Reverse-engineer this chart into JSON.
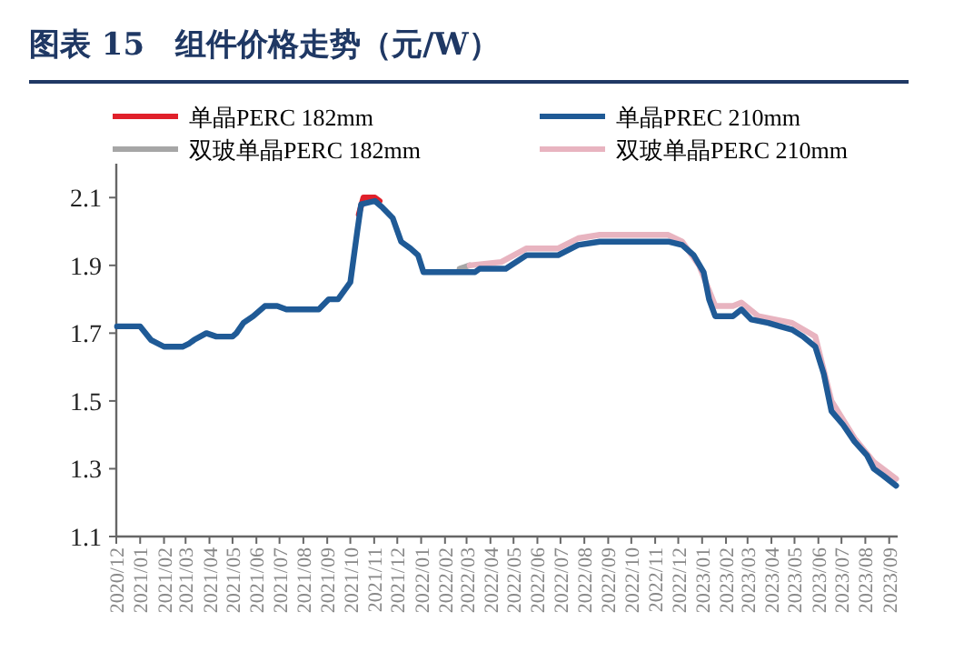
{
  "chart_data": {
    "type": "line",
    "title": "图表 15　组件价格走势（元/W）",
    "xlim": [
      "2020-12-01",
      "2023-09-12"
    ],
    "xticks": [
      {
        "value": "2020-12",
        "label": "2020/12"
      },
      {
        "value": "2021-01",
        "label": "2021/01"
      },
      {
        "value": "2021-02",
        "label": "2021/02"
      },
      {
        "value": "2021-03",
        "label": "2021/03"
      },
      {
        "value": "2021-04",
        "label": "2021/04"
      },
      {
        "value": "2021-05",
        "label": "2021/05"
      },
      {
        "value": "2021-06",
        "label": "2021/06"
      },
      {
        "value": "2021-07",
        "label": "2021/07"
      },
      {
        "value": "2021-08",
        "label": "2021/08"
      },
      {
        "value": "2021-09",
        "label": "2021/09"
      },
      {
        "value": "2021-10",
        "label": "2021/10"
      },
      {
        "value": "2021-11",
        "label": "2021/11"
      },
      {
        "value": "2021-12",
        "label": "2021/12"
      },
      {
        "value": "2022-01",
        "label": "2022/01"
      },
      {
        "value": "2022-02",
        "label": "2022/02"
      },
      {
        "value": "2022-03",
        "label": "2022/03"
      },
      {
        "value": "2022-04",
        "label": "2022/04"
      },
      {
        "value": "2022-05",
        "label": "2022/05"
      },
      {
        "value": "2022-06",
        "label": "2022/06"
      },
      {
        "value": "2022-07",
        "label": "2022/07"
      },
      {
        "value": "2022-08",
        "label": "2022/08"
      },
      {
        "value": "2022-09",
        "label": "2022/09"
      },
      {
        "value": "2022-10",
        "label": "2022/10"
      },
      {
        "value": "2022-11",
        "label": "2022/11"
      },
      {
        "value": "2022-12",
        "label": "2022/12"
      },
      {
        "value": "2023-01",
        "label": "2023/01"
      },
      {
        "value": "2023-02",
        "label": "2023/02"
      },
      {
        "value": "2023-03",
        "label": "2023/03"
      },
      {
        "value": "2023-04",
        "label": "2023/04"
      },
      {
        "value": "2023-05",
        "label": "2023/05"
      },
      {
        "value": "2023-06",
        "label": "2023/06"
      },
      {
        "value": "2023-07",
        "label": "2023/07"
      },
      {
        "value": "2023-08",
        "label": "2023/08"
      },
      {
        "value": "2023-09",
        "label": "2023/09"
      }
    ],
    "ylim": [
      1.1,
      2.2
    ],
    "yticks": [
      1.1,
      1.3,
      1.5,
      1.7,
      1.9,
      2.1
    ],
    "legend": "top",
    "grid": false,
    "marker": "none",
    "line_style": "solid",
    "series": [
      {
        "name": "单晶PERC 182mm",
        "color": "#e0202a",
        "x": [
          "2021-10-12",
          "2021-10-18",
          "2021-11-02",
          "2021-11-08"
        ],
        "values": [
          2.05,
          2.1,
          2.1,
          2.09
        ]
      },
      {
        "name": "单晶PREC 210mm",
        "color": "#1f5a96",
        "x": [
          "2020-12-02",
          "2021-01-01",
          "2021-01-15",
          "2021-02-01",
          "2021-02-25",
          "2021-03-06",
          "2021-03-12",
          "2021-03-28",
          "2021-04-10",
          "2021-05-01",
          "2021-05-06",
          "2021-05-15",
          "2021-05-28",
          "2021-06-12",
          "2021-06-28",
          "2021-07-10",
          "2021-08-21",
          "2021-09-03",
          "2021-09-15",
          "2021-10-01",
          "2021-10-10",
          "2021-10-15",
          "2021-11-02",
          "2021-11-12",
          "2021-11-25",
          "2021-12-06",
          "2021-12-18",
          "2021-12-28",
          "2022-01-04",
          "2022-03-12",
          "2022-03-18",
          "2022-04-21",
          "2022-05-18",
          "2022-06-28",
          "2022-07-24",
          "2022-08-21",
          "2022-11-18",
          "2022-12-06",
          "2022-12-21",
          "2023-01-03",
          "2023-01-10",
          "2023-01-18",
          "2023-02-10",
          "2023-02-21",
          "2023-03-06",
          "2023-03-28",
          "2023-04-12",
          "2023-04-28",
          "2023-05-12",
          "2023-05-28",
          "2023-06-08",
          "2023-06-18",
          "2023-07-03",
          "2023-07-18",
          "2023-08-03",
          "2023-08-12",
          "2023-08-24",
          "2023-09-10"
        ],
        "values": [
          1.72,
          1.72,
          1.68,
          1.66,
          1.66,
          1.67,
          1.68,
          1.7,
          1.69,
          1.69,
          1.7,
          1.73,
          1.75,
          1.78,
          1.78,
          1.77,
          1.77,
          1.8,
          1.8,
          1.85,
          2.0,
          2.08,
          2.09,
          2.07,
          2.04,
          1.97,
          1.95,
          1.93,
          1.88,
          1.88,
          1.89,
          1.89,
          1.93,
          1.93,
          1.96,
          1.97,
          1.97,
          1.96,
          1.93,
          1.88,
          1.8,
          1.75,
          1.75,
          1.77,
          1.74,
          1.73,
          1.72,
          1.71,
          1.69,
          1.66,
          1.58,
          1.47,
          1.43,
          1.38,
          1.34,
          1.3,
          1.28,
          1.25
        ]
      },
      {
        "name": "双玻单晶PERC 182mm",
        "color": "#a6a6a6",
        "x": [
          "2022-02-20",
          "2022-03-05"
        ],
        "values": [
          1.89,
          1.9
        ]
      },
      {
        "name": "双玻单晶PERC 210mm",
        "color": "#e8b4c0",
        "x": [
          "2022-03-05",
          "2022-04-15",
          "2022-05-18",
          "2022-06-28",
          "2022-07-24",
          "2022-08-21",
          "2022-11-18",
          "2022-12-06",
          "2022-12-28",
          "2023-01-18",
          "2023-02-10",
          "2023-02-21",
          "2023-03-15",
          "2023-04-28",
          "2023-05-28",
          "2023-06-18",
          "2023-07-18",
          "2023-08-12",
          "2023-09-10"
        ],
        "values": [
          1.9,
          1.91,
          1.95,
          1.95,
          1.98,
          1.99,
          1.99,
          1.97,
          1.9,
          1.78,
          1.78,
          1.79,
          1.75,
          1.73,
          1.69,
          1.5,
          1.39,
          1.32,
          1.27
        ]
      }
    ]
  }
}
